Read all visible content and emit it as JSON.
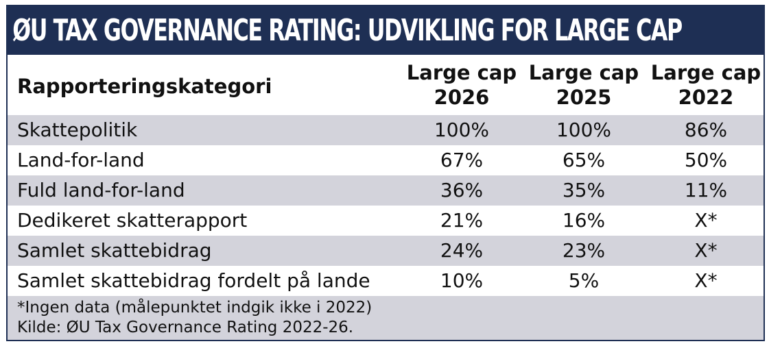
{
  "title": "ØU TAX GOVERNANCE RATING: UDVIKLING FOR LARGE CAP",
  "chart_data": {
    "type": "table",
    "title": "ØU TAX GOVERNANCE RATING: UDVIKLING FOR LARGE CAP",
    "category_header": "Rapporteringskategori",
    "columns": [
      {
        "line1": "Large cap",
        "line2": "2026"
      },
      {
        "line1": "Large cap",
        "line2": "2025"
      },
      {
        "line1": "Large cap",
        "line2": "2022"
      }
    ],
    "rows": [
      {
        "category": "Skattepolitik",
        "values": [
          "100%",
          "100%",
          "86%"
        ]
      },
      {
        "category": "Land-for-land",
        "values": [
          "67%",
          "65%",
          "50%"
        ]
      },
      {
        "category": "Fuld land-for-land",
        "values": [
          "36%",
          "35%",
          "11%"
        ]
      },
      {
        "category": "Dedikeret skatterapport",
        "values": [
          "21%",
          "16%",
          "X*"
        ]
      },
      {
        "category": "Samlet skattebidrag",
        "values": [
          "24%",
          "23%",
          "X*"
        ]
      },
      {
        "category": "Samlet skattebidrag fordelt på lande",
        "values": [
          "10%",
          "5%",
          "X*"
        ]
      }
    ]
  },
  "footnote": "*Ingen data (målepunktet indgik ikke i 2022)",
  "source": "Kilde: ØU Tax Governance Rating 2022-26.",
  "colors": {
    "title_bg": "#1e2f54",
    "title_text": "#ffffff",
    "shade_row": "#d3d3db",
    "text": "#111111"
  }
}
